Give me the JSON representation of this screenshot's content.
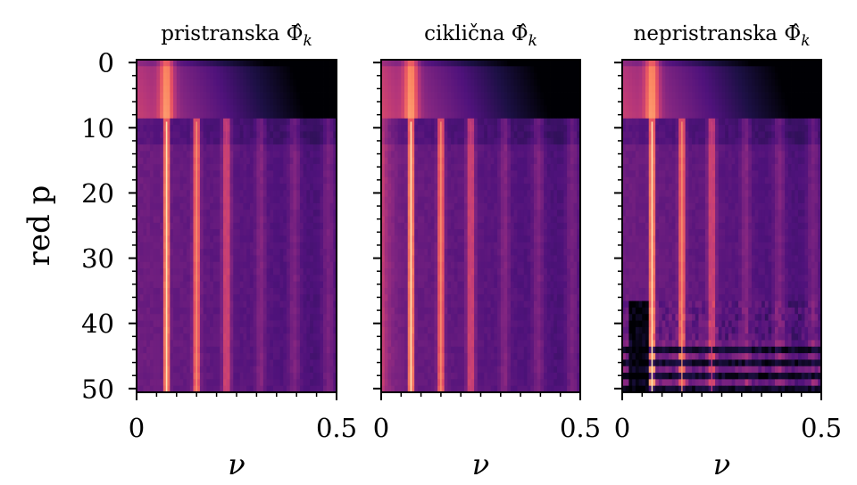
{
  "chart_data": [
    {
      "type": "heatmap",
      "title": "pristranska Φ̂_k",
      "title_parts": {
        "text": "pristranska ",
        "symbol": "Φ̂",
        "sub": "k"
      },
      "xlabel": "ν",
      "ylabel": "red p",
      "xlim": [
        0,
        0.5
      ],
      "ylim": [
        50,
        0
      ],
      "xticks": [
        "0",
        "0.5"
      ],
      "yticks": [
        "0",
        "10",
        "20",
        "30",
        "40",
        "50"
      ],
      "colormap": "magma",
      "features": {
        "fundamental_nu": 0.075,
        "broad_peak_rows": [
          0,
          8
        ],
        "sharp_lines_from_row": 9,
        "harmonics": 6
      },
      "variant": "biased"
    },
    {
      "type": "heatmap",
      "title": "ciklična Φ̂_k",
      "title_parts": {
        "text": "ciklična ",
        "symbol": "Φ̂",
        "sub": "k"
      },
      "xlabel": "ν",
      "xlim": [
        0,
        0.5
      ],
      "ylim": [
        50,
        0
      ],
      "xticks": [
        "0",
        "0.5"
      ],
      "colormap": "magma",
      "features": {
        "fundamental_nu": 0.075,
        "broad_peak_rows": [
          0,
          8
        ],
        "sharp_lines_from_row": 9,
        "harmonics": 6
      },
      "variant": "cyclic"
    },
    {
      "type": "heatmap",
      "title": "nepristranska Φ̂_k",
      "title_parts": {
        "text": "nepristranska ",
        "symbol": "Φ̂",
        "sub": "k"
      },
      "xlabel": "ν",
      "xlim": [
        0,
        0.5
      ],
      "ylim": [
        50,
        0
      ],
      "xticks": [
        "0",
        "0.5"
      ],
      "colormap": "magma",
      "features": {
        "fundamental_nu": 0.075,
        "broad_peak_rows": [
          0,
          8
        ],
        "sharp_lines_from_row": 9,
        "harmonics": 6,
        "unstable_rows_from": 37
      },
      "variant": "unbiased"
    }
  ]
}
